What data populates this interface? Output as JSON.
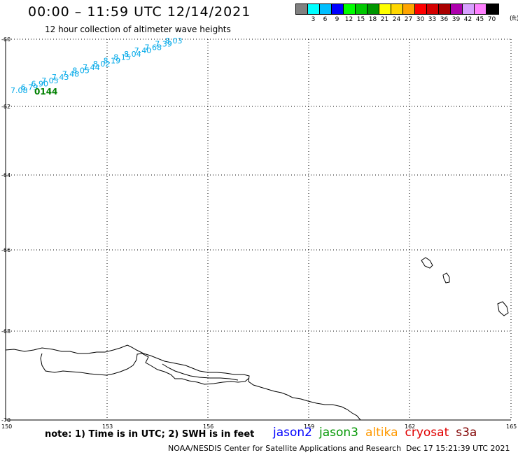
{
  "title": "00:00 – 11:59 UTC 12/14/2021",
  "subtitle": "12 hour collection of altimeter wave heights",
  "colorbar": {
    "colors": [
      "#808080",
      "#00ffff",
      "#00bfff",
      "#0000ff",
      "#00ff00",
      "#00c800",
      "#009600",
      "#ffff00",
      "#ffd700",
      "#ffa500",
      "#ff0000",
      "#d40000",
      "#aa0000",
      "#ad00ad",
      "#d8a0ff",
      "#ff80ff",
      "#000000"
    ],
    "labels": [
      "",
      "3",
      "6",
      "9",
      "12",
      "15",
      "18",
      "21",
      "24",
      "27",
      "30",
      "33",
      "36",
      "39",
      "42",
      "45",
      "70"
    ],
    "unit": "(ft)"
  },
  "axes": {
    "lat_labels": [
      "-60",
      "-62",
      "-64",
      "-66",
      "-68",
      "-70"
    ],
    "lon_labels": [
      "150",
      "153",
      "156",
      "159",
      "162",
      "165"
    ]
  },
  "track": {
    "color": "#00a8e8",
    "values": [
      "7.08",
      "6.79",
      "6.90",
      "7.05",
      "7.43",
      "7.48",
      "8.05",
      "7.44",
      "8.02",
      "8.19",
      "8.15",
      "8.04",
      "7.40",
      "7.68",
      "7.39",
      "8.03"
    ],
    "time_label": "0144",
    "time_color": "#008000"
  },
  "note": "note: 1) Time is in UTC; 2) SWH is in feet",
  "legend": [
    {
      "name": "jason2",
      "color": "#0000ff"
    },
    {
      "name": "jason3",
      "color": "#009600"
    },
    {
      "name": "altika",
      "color": "#ff9900"
    },
    {
      "name": "cryosat",
      "color": "#e00000"
    },
    {
      "name": "s3a",
      "color": "#800000"
    }
  ],
  "footer": "NOAA/NESDIS Center for Satellite Applications and Research",
  "timestamp": "Dec 17 15:21:39 UTC 2021"
}
